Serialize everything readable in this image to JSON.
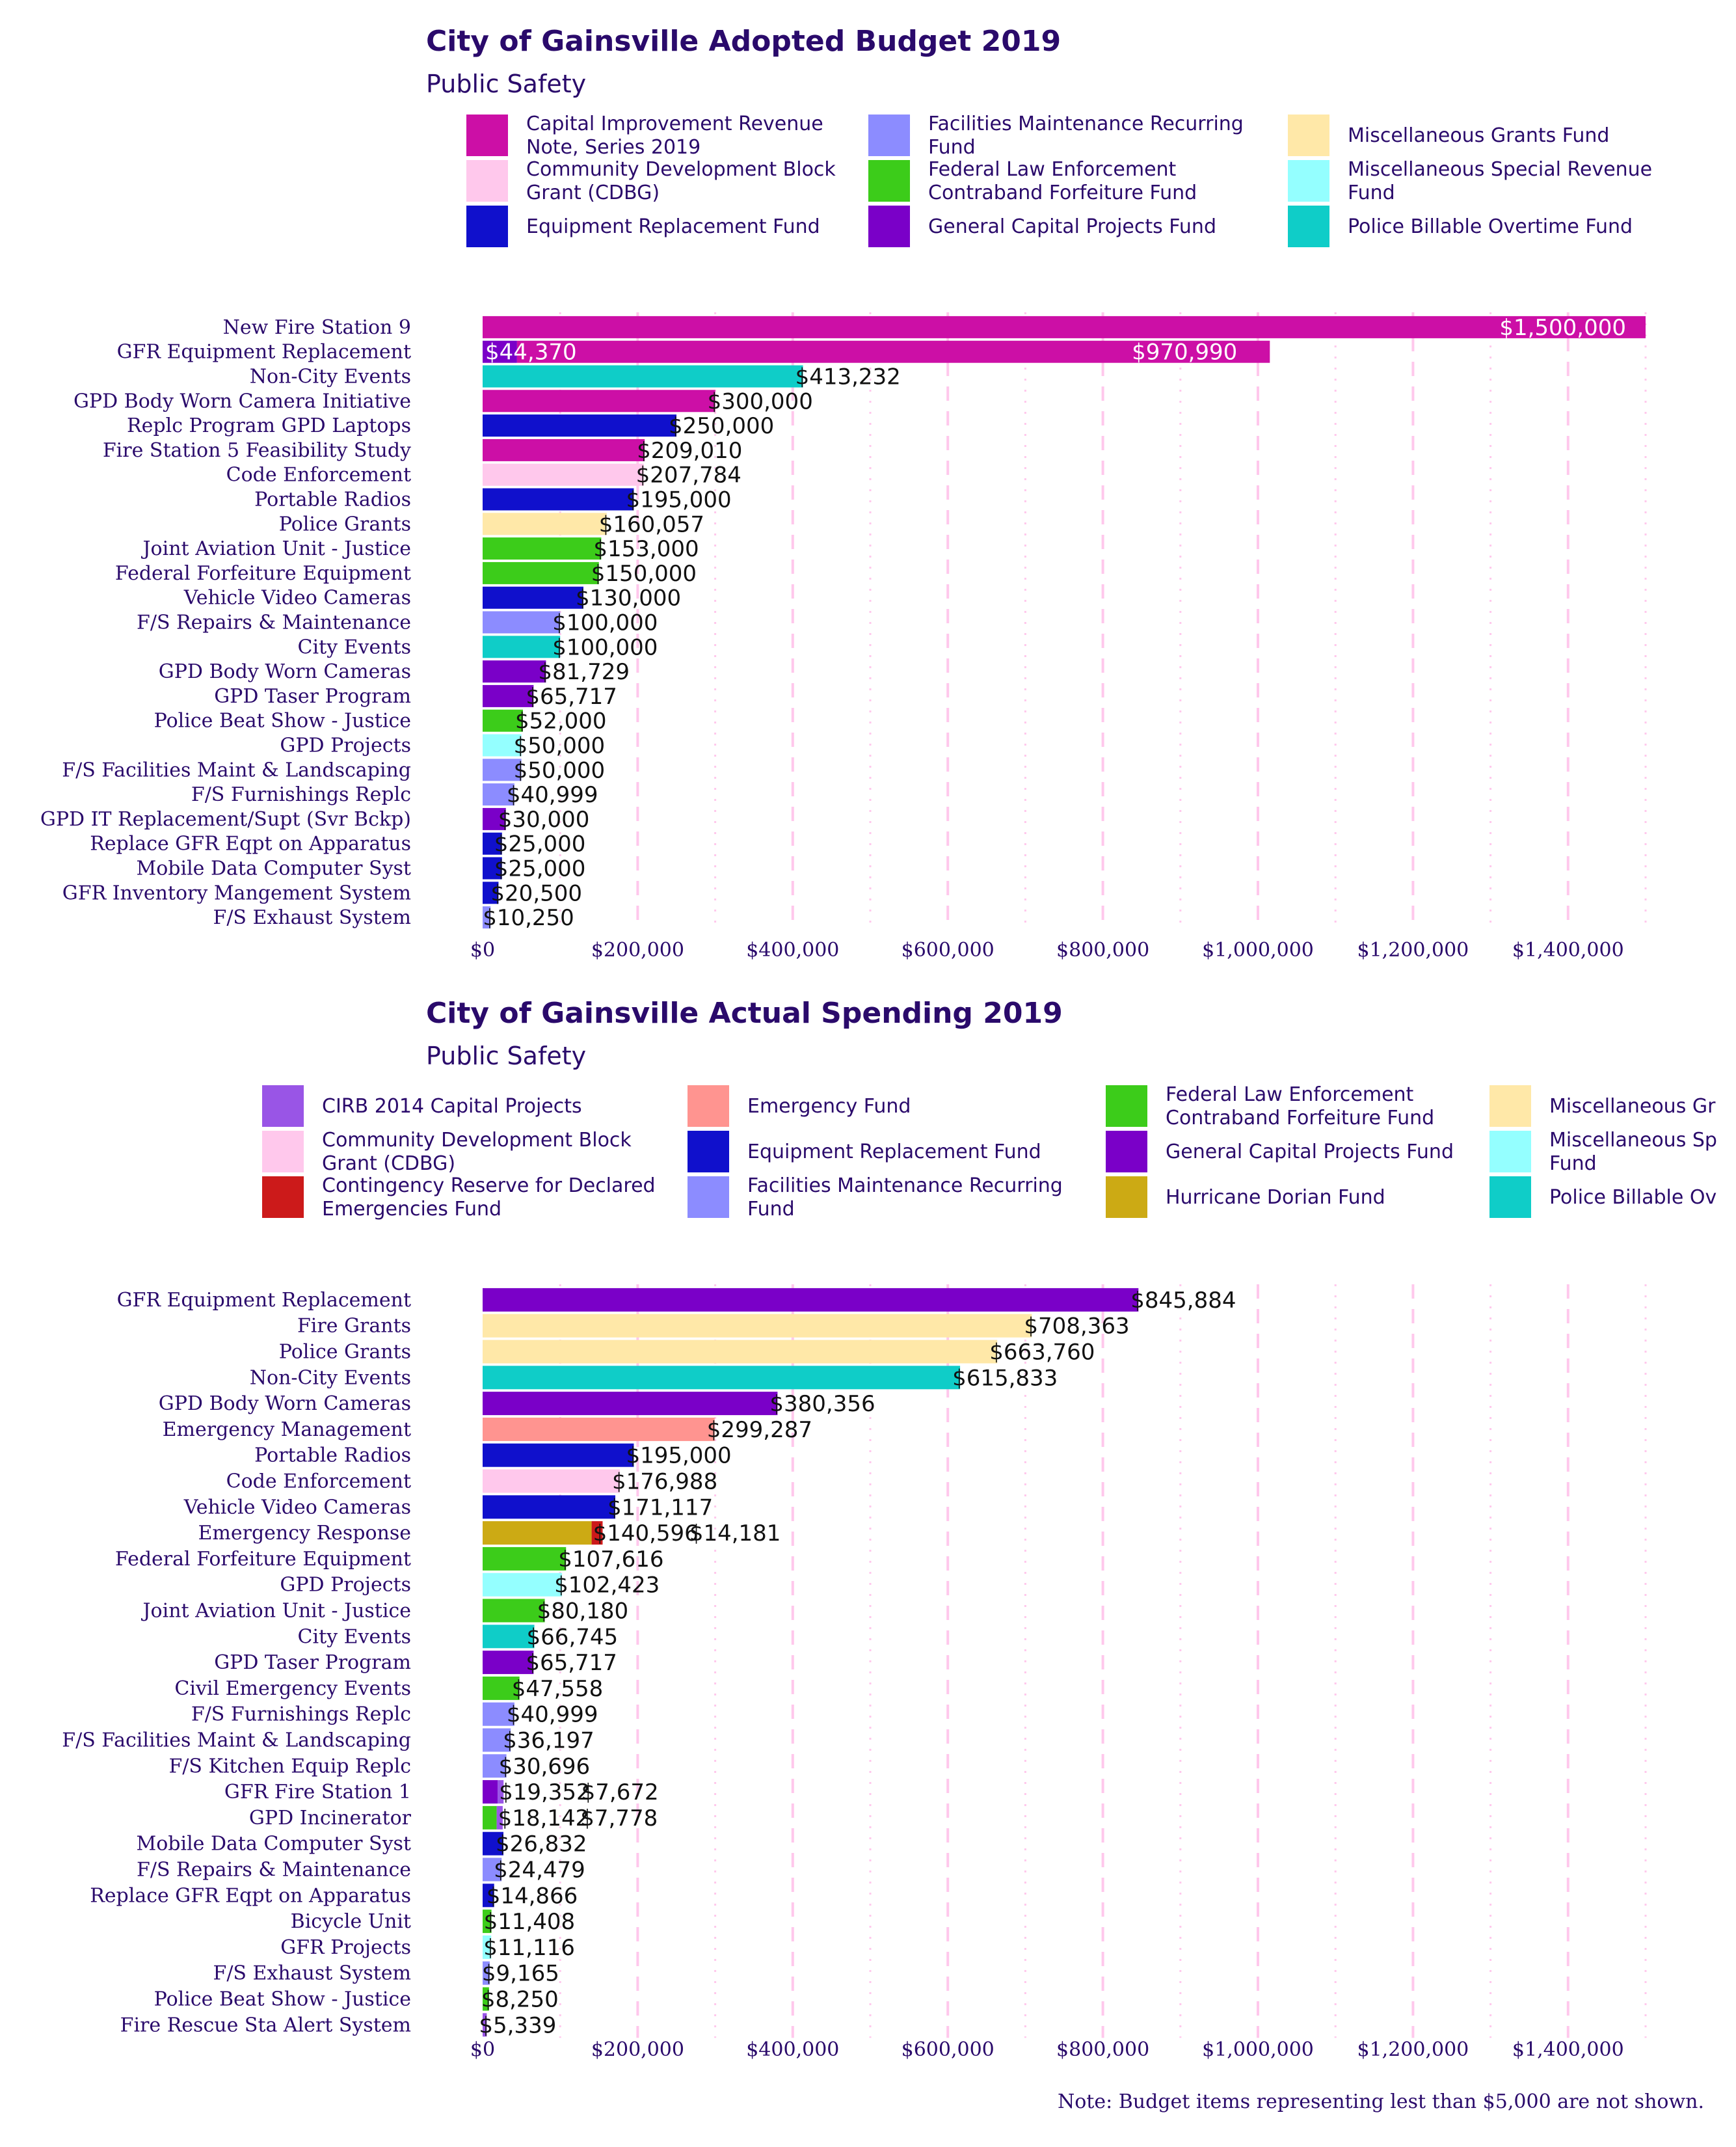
{
  "note": "Note: Budget items representing lest than $5,000 are not shown.",
  "funds": {
    "cirb2019": {
      "name": "Capital Improvement Revenue Note, Series 2019",
      "color": "#cc0fa6"
    },
    "cdbg": {
      "name": "Community Development Block Grant (CDBG)",
      "color": "#ffc8ec"
    },
    "equip": {
      "name": "Equipment Replacement Fund",
      "color": "#1010cc"
    },
    "facmaint": {
      "name": "Facilities Maintenance Recurring Fund",
      "color": "#8c8cff"
    },
    "fedlaw": {
      "name": "Federal Law Enforcement Contraband Forfeiture Fund",
      "color": "#3ccc1a"
    },
    "gencap": {
      "name": "General Capital Projects Fund",
      "color": "#7a00c8"
    },
    "miscgrants": {
      "name": "Miscellaneous Grants Fund",
      "color": "#ffe8a8"
    },
    "miscspecial": {
      "name": "Miscellaneous Special Revenue Fund",
      "color": "#94ffff"
    },
    "policeot": {
      "name": "Police Billable Overtime Fund",
      "color": "#0fcdc8"
    },
    "cirb2014": {
      "name": "CIRB 2014 Capital Projects",
      "color": "#9955e6"
    },
    "contingency": {
      "name": "Contingency Reserve for Declared Emergencies Fund",
      "color": "#cc1a1a"
    },
    "emergency": {
      "name": "Emergency Fund",
      "color": "#ff9490"
    },
    "dorian": {
      "name": "Hurricane Dorian Fund",
      "color": "#ccaa14"
    }
  },
  "chart_data": [
    {
      "type": "bar",
      "orientation": "horizontal",
      "stacked": true,
      "title": "City of Gainsville Adopted Budget 2019",
      "subtitle": "Public Safety",
      "xlim": [
        0,
        1500000
      ],
      "xticks": [
        0,
        200000,
        400000,
        600000,
        800000,
        1000000,
        1200000,
        1400000
      ],
      "xtick_labels": [
        "$0",
        "$200,000",
        "$400,000",
        "$600,000",
        "$800,000",
        "$1,000,000",
        "$1,200,000",
        "$1,400,000"
      ],
      "legend_position": "top",
      "legend": [
        {
          "fund": "cirb2019",
          "lines": [
            "Capital Improvement Revenue",
            "Note, Series 2019"
          ]
        },
        {
          "fund": "cdbg",
          "lines": [
            "Community Development Block",
            "Grant (CDBG)"
          ]
        },
        {
          "fund": "equip",
          "lines": [
            "Equipment Replacement Fund"
          ]
        },
        {
          "fund": "facmaint",
          "lines": [
            "Facilities Maintenance Recurring",
            "Fund"
          ]
        },
        {
          "fund": "fedlaw",
          "lines": [
            "Federal Law Enforcement",
            "Contraband Forfeiture Fund"
          ]
        },
        {
          "fund": "gencap",
          "lines": [
            "General Capital Projects Fund"
          ]
        },
        {
          "fund": "miscgrants",
          "lines": [
            "Miscellaneous Grants Fund"
          ]
        },
        {
          "fund": "miscspecial",
          "lines": [
            "Miscellaneous Special Revenue",
            "Fund"
          ]
        },
        {
          "fund": "policeot",
          "lines": [
            "Police Billable Overtime Fund"
          ]
        }
      ],
      "rows": [
        {
          "label": "New Fire Station 9",
          "segments": [
            {
              "fund": "cirb2019",
              "value": 1500000,
              "label": "$1,500,000"
            }
          ]
        },
        {
          "label": "GFR Equipment Replacement",
          "segments": [
            {
              "fund": "gencap",
              "value": 44370,
              "label": "$44,370"
            },
            {
              "fund": "cirb2019",
              "value": 970990,
              "label": "$970,990"
            }
          ]
        },
        {
          "label": "Non-City Events",
          "segments": [
            {
              "fund": "policeot",
              "value": 413232,
              "label": "$413,232"
            }
          ]
        },
        {
          "label": "GPD Body Worn Camera Initiative",
          "segments": [
            {
              "fund": "cirb2019",
              "value": 300000,
              "label": "$300,000"
            }
          ]
        },
        {
          "label": "Replc Program GPD Laptops",
          "segments": [
            {
              "fund": "equip",
              "value": 250000,
              "label": "$250,000"
            }
          ]
        },
        {
          "label": "Fire Station 5 Feasibility Study",
          "segments": [
            {
              "fund": "cirb2019",
              "value": 209010,
              "label": "$209,010"
            }
          ]
        },
        {
          "label": "Code Enforcement",
          "segments": [
            {
              "fund": "cdbg",
              "value": 207784,
              "label": "$207,784"
            }
          ]
        },
        {
          "label": "Portable Radios",
          "segments": [
            {
              "fund": "equip",
              "value": 195000,
              "label": "$195,000"
            }
          ]
        },
        {
          "label": "Police Grants",
          "segments": [
            {
              "fund": "miscgrants",
              "value": 160057,
              "label": "$160,057"
            }
          ]
        },
        {
          "label": "Joint Aviation Unit - Justice",
          "segments": [
            {
              "fund": "fedlaw",
              "value": 153000,
              "label": "$153,000"
            }
          ]
        },
        {
          "label": "Federal Forfeiture Equipment",
          "segments": [
            {
              "fund": "fedlaw",
              "value": 150000,
              "label": "$150,000"
            }
          ]
        },
        {
          "label": "Vehicle Video Cameras",
          "segments": [
            {
              "fund": "equip",
              "value": 130000,
              "label": "$130,000"
            }
          ]
        },
        {
          "label": "F/S Repairs & Maintenance",
          "segments": [
            {
              "fund": "facmaint",
              "value": 100000,
              "label": "$100,000"
            }
          ]
        },
        {
          "label": "City Events",
          "segments": [
            {
              "fund": "policeot",
              "value": 100000,
              "label": "$100,000"
            }
          ]
        },
        {
          "label": "GPD Body Worn Cameras",
          "segments": [
            {
              "fund": "gencap",
              "value": 81729,
              "label": "$81,729"
            }
          ]
        },
        {
          "label": "GPD Taser Program",
          "segments": [
            {
              "fund": "gencap",
              "value": 65717,
              "label": "$65,717"
            }
          ]
        },
        {
          "label": "Police Beat Show - Justice",
          "segments": [
            {
              "fund": "fedlaw",
              "value": 52000,
              "label": "$52,000"
            }
          ]
        },
        {
          "label": "GPD Projects",
          "segments": [
            {
              "fund": "miscspecial",
              "value": 50000,
              "label": "$50,000"
            }
          ]
        },
        {
          "label": "F/S Facilities Maint & Landscaping",
          "segments": [
            {
              "fund": "facmaint",
              "value": 50000,
              "label": "$50,000"
            }
          ]
        },
        {
          "label": "F/S Furnishings Replc",
          "segments": [
            {
              "fund": "facmaint",
              "value": 40999,
              "label": "$40,999"
            }
          ]
        },
        {
          "label": "GPD IT Replacement/Supt (Svr Bckp)",
          "segments": [
            {
              "fund": "gencap",
              "value": 30000,
              "label": "$30,000"
            }
          ]
        },
        {
          "label": "Replace GFR Eqpt on Apparatus",
          "segments": [
            {
              "fund": "equip",
              "value": 25000,
              "label": "$25,000"
            }
          ]
        },
        {
          "label": "Mobile Data Computer Syst",
          "segments": [
            {
              "fund": "equip",
              "value": 25000,
              "label": "$25,000"
            }
          ]
        },
        {
          "label": "GFR Inventory Mangement System",
          "segments": [
            {
              "fund": "equip",
              "value": 20500,
              "label": "$20,500"
            }
          ]
        },
        {
          "label": "F/S Exhaust System",
          "segments": [
            {
              "fund": "facmaint",
              "value": 10250,
              "label": "$10,250"
            }
          ]
        }
      ]
    },
    {
      "type": "bar",
      "orientation": "horizontal",
      "stacked": true,
      "title": "City of Gainsville Actual Spending 2019",
      "subtitle": "Public Safety",
      "xlim": [
        0,
        1500000
      ],
      "xticks": [
        0,
        200000,
        400000,
        600000,
        800000,
        1000000,
        1200000,
        1400000
      ],
      "xtick_labels": [
        "$0",
        "$200,000",
        "$400,000",
        "$600,000",
        "$800,000",
        "$1,000,000",
        "$1,200,000",
        "$1,400,000"
      ],
      "legend_position": "top",
      "legend": [
        {
          "fund": "cirb2014",
          "lines": [
            "CIRB 2014 Capital Projects"
          ]
        },
        {
          "fund": "cdbg",
          "lines": [
            "Community Development Block",
            "Grant (CDBG)"
          ]
        },
        {
          "fund": "contingency",
          "lines": [
            "Contingency Reserve for Declared",
            "Emergencies Fund"
          ]
        },
        {
          "fund": "emergency",
          "lines": [
            "Emergency Fund"
          ]
        },
        {
          "fund": "equip",
          "lines": [
            "Equipment Replacement Fund"
          ]
        },
        {
          "fund": "facmaint",
          "lines": [
            "Facilities Maintenance Recurring",
            "Fund"
          ]
        },
        {
          "fund": "fedlaw",
          "lines": [
            "Federal Law Enforcement",
            "Contraband Forfeiture Fund"
          ]
        },
        {
          "fund": "gencap",
          "lines": [
            "General Capital Projects Fund"
          ]
        },
        {
          "fund": "dorian",
          "lines": [
            "Hurricane Dorian Fund"
          ]
        },
        {
          "fund": "miscgrants",
          "lines": [
            "Miscellaneous Gr"
          ]
        },
        {
          "fund": "miscspecial",
          "lines": [
            "Miscellaneous Sp",
            "Fund"
          ]
        },
        {
          "fund": "policeot",
          "lines": [
            "Police Billable Ov"
          ]
        }
      ],
      "rows": [
        {
          "label": "GFR Equipment Replacement",
          "segments": [
            {
              "fund": "gencap",
              "value": 845884,
              "label": "$845,884"
            }
          ]
        },
        {
          "label": "Fire Grants",
          "segments": [
            {
              "fund": "miscgrants",
              "value": 708363,
              "label": "$708,363"
            }
          ]
        },
        {
          "label": "Police Grants",
          "segments": [
            {
              "fund": "miscgrants",
              "value": 663760,
              "label": "$663,760"
            }
          ]
        },
        {
          "label": "Non-City Events",
          "segments": [
            {
              "fund": "policeot",
              "value": 615833,
              "label": "$615,833"
            }
          ]
        },
        {
          "label": "GPD Body Worn Cameras",
          "segments": [
            {
              "fund": "gencap",
              "value": 380356,
              "label": "$380,356"
            }
          ]
        },
        {
          "label": "Emergency Management",
          "segments": [
            {
              "fund": "emergency",
              "value": 299287,
              "label": "$299,287"
            }
          ]
        },
        {
          "label": "Portable Radios",
          "segments": [
            {
              "fund": "equip",
              "value": 195000,
              "label": "$195,000"
            }
          ]
        },
        {
          "label": "Code Enforcement",
          "segments": [
            {
              "fund": "cdbg",
              "value": 176988,
              "label": "$176,988"
            }
          ]
        },
        {
          "label": "Vehicle Video Cameras",
          "segments": [
            {
              "fund": "equip",
              "value": 171117,
              "label": "$171,117"
            }
          ]
        },
        {
          "label": "Emergency Response",
          "segments": [
            {
              "fund": "dorian",
              "value": 140596,
              "label": "$140,596"
            },
            {
              "fund": "contingency",
              "value": 14181,
              "label": "$14,181"
            }
          ]
        },
        {
          "label": "Federal Forfeiture Equipment",
          "segments": [
            {
              "fund": "fedlaw",
              "value": 107616,
              "label": "$107,616"
            }
          ]
        },
        {
          "label": "GPD Projects",
          "segments": [
            {
              "fund": "miscspecial",
              "value": 102423,
              "label": "$102,423"
            }
          ]
        },
        {
          "label": "Joint Aviation Unit - Justice",
          "segments": [
            {
              "fund": "fedlaw",
              "value": 80180,
              "label": "$80,180"
            }
          ]
        },
        {
          "label": "City Events",
          "segments": [
            {
              "fund": "policeot",
              "value": 66745,
              "label": "$66,745"
            }
          ]
        },
        {
          "label": "GPD Taser Program",
          "segments": [
            {
              "fund": "gencap",
              "value": 65717,
              "label": "$65,717"
            }
          ]
        },
        {
          "label": "Civil Emergency Events",
          "segments": [
            {
              "fund": "fedlaw",
              "value": 47558,
              "label": "$47,558"
            }
          ]
        },
        {
          "label": "F/S Furnishings Replc",
          "segments": [
            {
              "fund": "facmaint",
              "value": 40999,
              "label": "$40,999"
            }
          ]
        },
        {
          "label": "F/S Facilities Maint & Landscaping",
          "segments": [
            {
              "fund": "facmaint",
              "value": 36197,
              "label": "$36,197"
            }
          ]
        },
        {
          "label": "F/S Kitchen Equip Replc",
          "segments": [
            {
              "fund": "facmaint",
              "value": 30696,
              "label": "$30,696"
            }
          ]
        },
        {
          "label": "GFR Fire Station 1",
          "segments": [
            {
              "fund": "gencap",
              "value": 19352,
              "label": "$19,352"
            },
            {
              "fund": "cirb2014",
              "value": 7672,
              "label": "$7,672"
            }
          ]
        },
        {
          "label": "GPD Incinerator",
          "segments": [
            {
              "fund": "fedlaw",
              "value": 18142,
              "label": "$18,142"
            },
            {
              "fund": "cirb2014",
              "value": 7778,
              "label": "$7,778"
            }
          ]
        },
        {
          "label": "Mobile Data Computer Syst",
          "segments": [
            {
              "fund": "equip",
              "value": 26832,
              "label": "$26,832"
            }
          ]
        },
        {
          "label": "F/S Repairs & Maintenance",
          "segments": [
            {
              "fund": "facmaint",
              "value": 24479,
              "label": "$24,479"
            }
          ]
        },
        {
          "label": "Replace GFR Eqpt on Apparatus",
          "segments": [
            {
              "fund": "equip",
              "value": 14866,
              "label": "$14,866"
            }
          ]
        },
        {
          "label": "Bicycle Unit",
          "segments": [
            {
              "fund": "fedlaw",
              "value": 11408,
              "label": "$11,408"
            }
          ]
        },
        {
          "label": "GFR Projects",
          "segments": [
            {
              "fund": "miscspecial",
              "value": 11116,
              "label": "$11,116"
            }
          ]
        },
        {
          "label": "F/S Exhaust System",
          "segments": [
            {
              "fund": "facmaint",
              "value": 9165,
              "label": "$9,165"
            }
          ]
        },
        {
          "label": "Police Beat Show - Justice",
          "segments": [
            {
              "fund": "fedlaw",
              "value": 8250,
              "label": "$8,250"
            }
          ]
        },
        {
          "label": "Fire Rescue Sta Alert System",
          "segments": [
            {
              "fund": "cirb2014",
              "value": 5339,
              "label": "$5,339"
            }
          ]
        }
      ]
    }
  ]
}
